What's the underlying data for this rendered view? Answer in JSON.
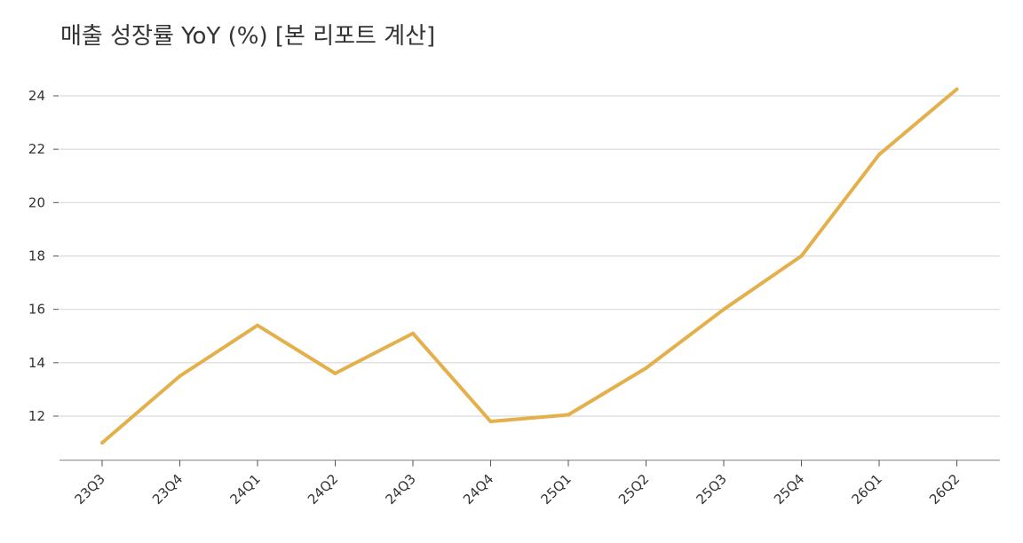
{
  "chart_data": {
    "type": "line",
    "title": "매출 성장률 YoY (%) [본 리포트 계산]",
    "xlabel": "",
    "ylabel": "",
    "categories": [
      "23Q3",
      "23Q4",
      "24Q1",
      "24Q2",
      "24Q3",
      "24Q4",
      "25Q1",
      "25Q2",
      "25Q3",
      "25Q4",
      "26Q1",
      "26Q2"
    ],
    "series": [
      {
        "values": [
          11.0,
          13.5,
          15.4,
          13.6,
          15.1,
          11.8,
          12.05,
          13.8,
          16.0,
          18.0,
          21.8,
          24.25
        ],
        "color": "#E3B04B"
      }
    ],
    "yticks": [
      12,
      14,
      16,
      18,
      20,
      22,
      24
    ],
    "ylim": [
      10.35,
      25.0
    ],
    "grid": "horizontal",
    "legend": "none"
  }
}
